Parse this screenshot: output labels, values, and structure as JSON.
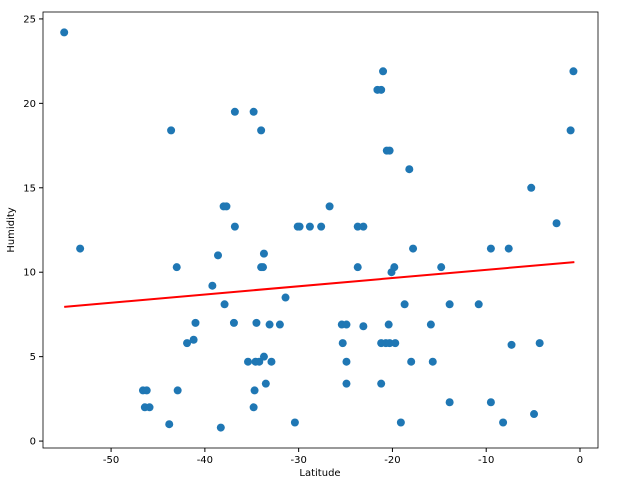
{
  "chart_data": {
    "type": "scatter",
    "x_label": "Latitude",
    "y_label": "Humidity",
    "color": "#1f77b4",
    "x": [
      -55.0,
      -53.3,
      -43.6,
      -43.0,
      -46.6,
      -46.2,
      -46.4,
      -45.9,
      -43.8,
      -42.9,
      -41.9,
      -41.2,
      -41.0,
      -39.2,
      -38.6,
      -38.0,
      -37.7,
      -37.9,
      -38.3,
      -36.8,
      -36.8,
      -36.9,
      -35.4,
      -34.8,
      -34.0,
      -34.7,
      -34.8,
      -34.6,
      -34.2,
      -34.5,
      -34.0,
      -33.8,
      -33.7,
      -33.7,
      -33.5,
      -32.9,
      -33.1,
      -32.0,
      -31.4,
      -30.4,
      -30.1,
      -29.9,
      -28.8,
      -27.6,
      -26.7,
      -25.4,
      -24.9,
      -25.3,
      -24.9,
      -24.9,
      -23.7,
      -23.1,
      -23.7,
      -23.1,
      -21.6,
      -21.2,
      -21.0,
      -21.2,
      -20.7,
      -21.2,
      -20.6,
      -20.3,
      -20.4,
      -20.3,
      -19.7,
      -20.1,
      -19.8,
      -19.1,
      -18.7,
      -18.2,
      -18.0,
      -17.8,
      -15.9,
      -15.7,
      -14.8,
      -13.9,
      -13.9,
      -10.8,
      -9.5,
      -9.5,
      -8.2,
      -7.6,
      -7.3,
      -5.2,
      -4.9,
      -4.3,
      -2.5,
      -1.0,
      -0.7
    ],
    "y": [
      24.2,
      11.4,
      18.4,
      10.3,
      3.0,
      3.0,
      2.0,
      2.0,
      1.0,
      3.0,
      5.8,
      6.0,
      7.0,
      9.2,
      11.0,
      13.9,
      13.9,
      8.1,
      0.8,
      19.5,
      12.7,
      7.0,
      4.7,
      19.5,
      18.4,
      3.0,
      2.0,
      4.7,
      4.7,
      7.0,
      10.3,
      10.3,
      11.1,
      5.0,
      3.4,
      4.7,
      6.9,
      6.9,
      8.5,
      1.1,
      12.7,
      12.7,
      12.7,
      12.7,
      13.9,
      6.9,
      6.9,
      5.8,
      4.7,
      3.4,
      12.7,
      12.7,
      10.3,
      6.8,
      20.8,
      20.8,
      21.9,
      5.8,
      5.8,
      3.4,
      17.2,
      17.2,
      6.9,
      5.8,
      5.8,
      10.0,
      10.3,
      1.1,
      8.1,
      16.1,
      4.7,
      11.4,
      6.9,
      4.7,
      10.3,
      8.1,
      2.3,
      8.1,
      11.4,
      2.3,
      1.1,
      11.4,
      5.7,
      15.0,
      1.6,
      5.8,
      12.9,
      18.4,
      21.9
    ],
    "fit": {
      "x": [
        -55.0,
        -0.6
      ],
      "y": [
        7.95,
        10.6
      ],
      "color": "#ff0000"
    },
    "xlim": [
      -57.26,
      1.92
    ],
    "ylim": [
      -0.41,
      25.41
    ],
    "xticks": [
      -50,
      -40,
      -30,
      -20,
      -10,
      0
    ],
    "yticks": [
      0,
      5,
      10,
      15,
      20,
      25
    ]
  }
}
